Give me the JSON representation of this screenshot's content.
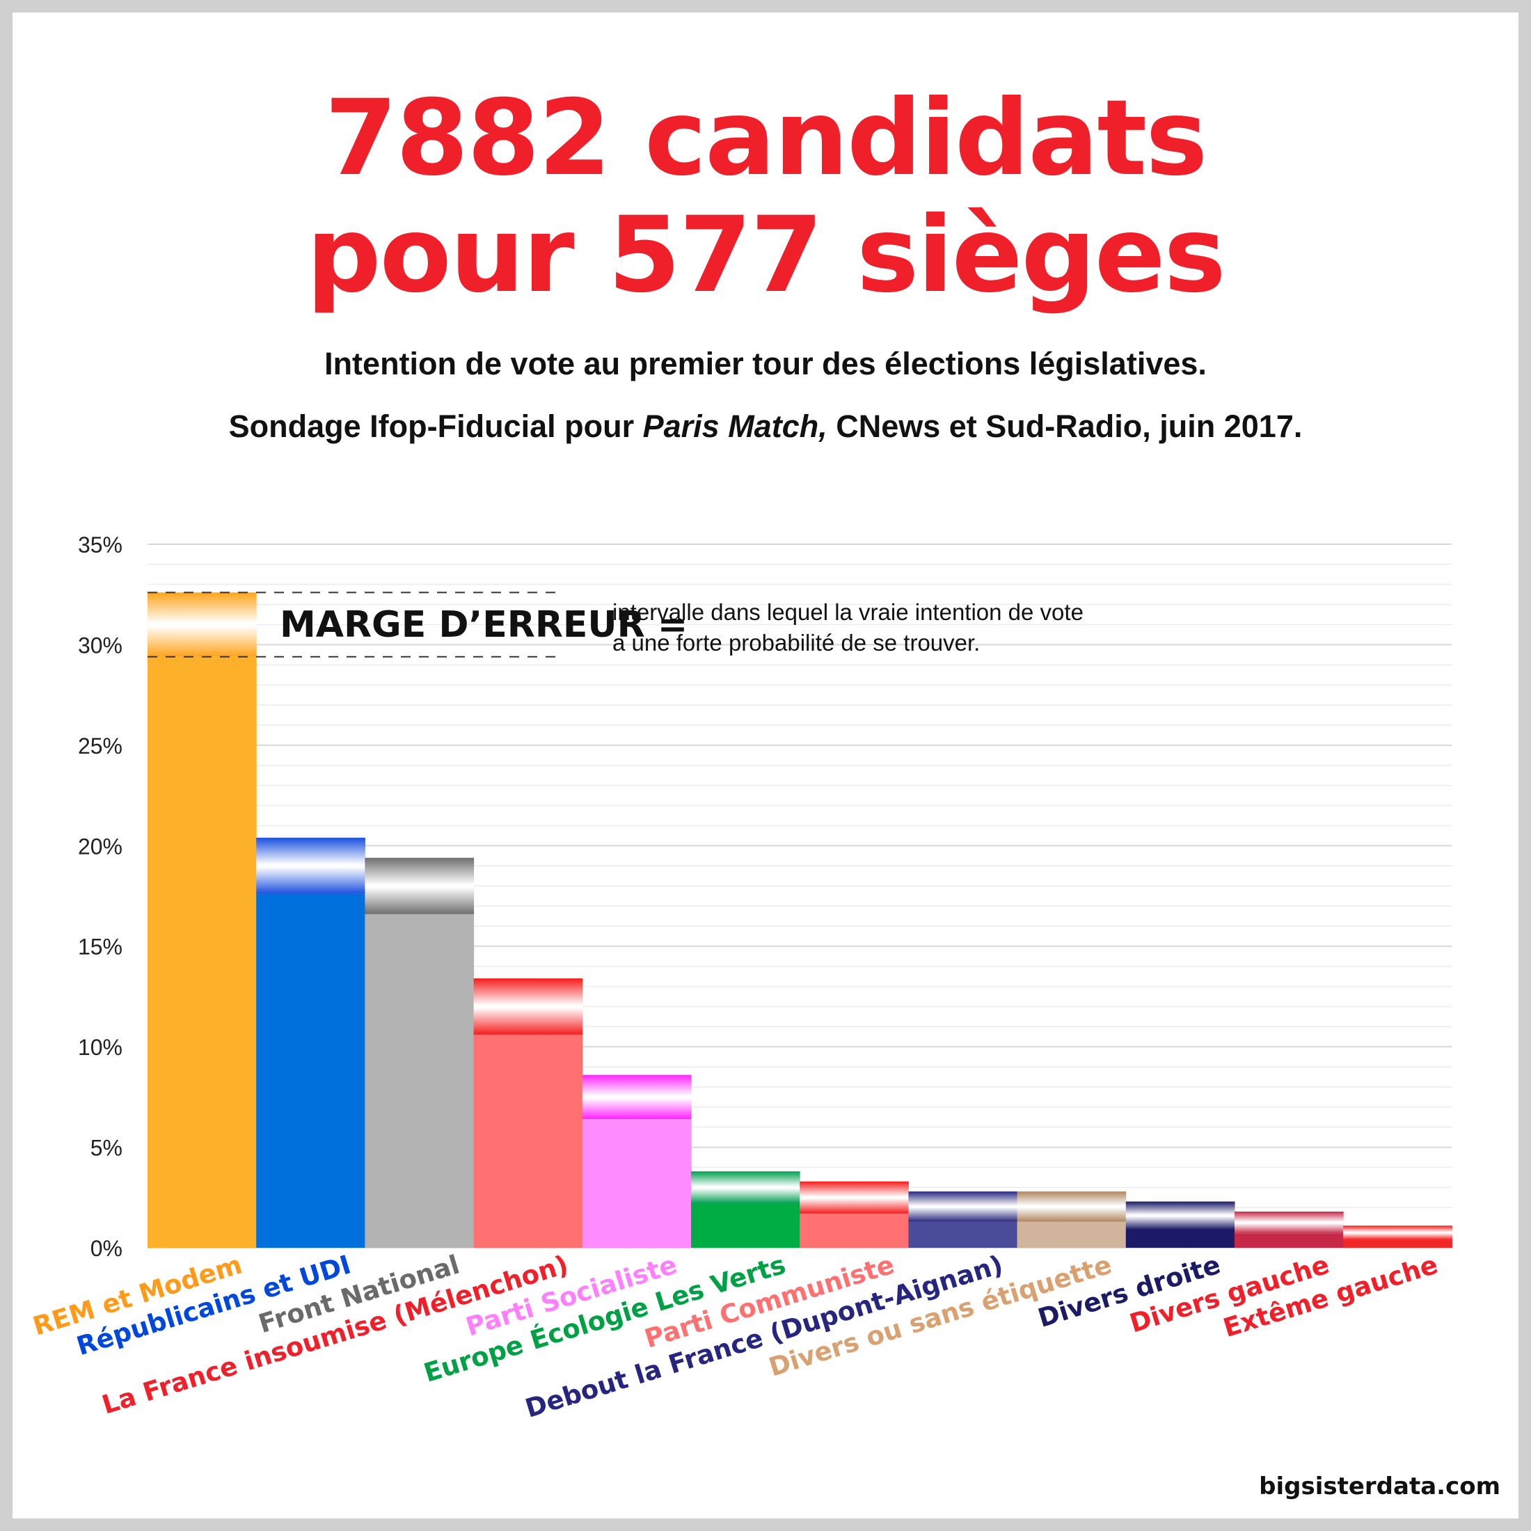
{
  "header": {
    "title_line1": "7882 candidats",
    "title_line2": "pour 577 sièges",
    "subtitle_line1": "Intention de vote au premier tour des élections législatives.",
    "subtitle_line2_a": "Sondage Ifop-Fiducial pour ",
    "subtitle_line2_b": "Paris Match,",
    "subtitle_line2_c": " CNews et Sud-Radio, juin 2017."
  },
  "annotation": {
    "label": "MARGE D’ERREUR =",
    "desc_line1": "intervalle dans lequel la vraie intention de vote",
    "desc_line2": "a une forte probabilité de se trouver."
  },
  "footer": {
    "source": "bigsisterdata.com"
  },
  "chart_data": {
    "type": "bar",
    "ylim": [
      0,
      35
    ],
    "yticks": [
      0,
      5,
      10,
      15,
      20,
      25,
      30,
      35
    ],
    "ytick_labels": [
      "0%",
      "5%",
      "10%",
      "15%",
      "20%",
      "25%",
      "30%",
      "35%"
    ],
    "grid": true,
    "categories": [
      "REM et Modem",
      "Républicains et UDI",
      "Front National",
      "La France insoumise (Mélenchon)",
      "Parti Socialiste",
      "Europe Écologie Les Verts",
      "Parti Communiste",
      "Debout la France (Dupont-Aignan)",
      "Divers ou sans étiquette",
      "Divers droite",
      "Divers gauche",
      "Extême gauche"
    ],
    "values": [
      31,
      19,
      18,
      12,
      7.5,
      3,
      2.5,
      2,
      2,
      1.8,
      1.3,
      0.8
    ],
    "error_low": [
      29.4,
      17.6,
      16.6,
      10.6,
      6.4,
      2.2,
      1.7,
      1.3,
      1.3,
      0.9,
      0.7,
      0.4
    ],
    "error_high": [
      32.6,
      20.4,
      19.4,
      13.4,
      8.6,
      3.8,
      3.3,
      2.8,
      2.8,
      2.3,
      1.8,
      1.1
    ],
    "colors": [
      "#fdb12a",
      "#0070dd",
      "#b3b3b3",
      "#ff7070",
      "#ff8cff",
      "#00ad45",
      "#ff7070",
      "#4a4c99",
      "#d1b49c",
      "#1a1a66",
      "#c82848",
      "#f02828"
    ],
    "band_colors": [
      "#ffa31a",
      "#1a50e0",
      "#6e6e6e",
      "#f51c1c",
      "#ff22ff",
      "#00a050",
      "#f51c1c",
      "#2a2a80",
      "#b08660",
      "#1a1a66",
      "#c82848",
      "#f51c1c"
    ],
    "label_colors": [
      "#ff9a1a",
      "#0048dd",
      "#6a6a6a",
      "#f0202a",
      "#ff80ff",
      "#00a045",
      "#ff7070",
      "#262680",
      "#d9a070",
      "#1a1a66",
      "#f0202a",
      "#f0202a"
    ]
  }
}
